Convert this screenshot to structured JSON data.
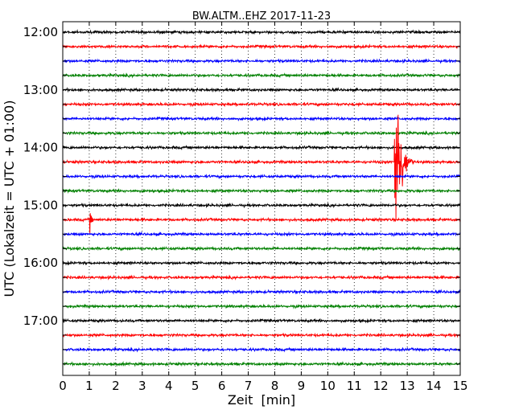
{
  "chart_data": {
    "type": "line",
    "title": "BW.ALTM..EHZ 2017-11-23",
    "xlabel": "Zeit  [min]",
    "ylabel": "UTC (Lokalzeit = UTC + 01:00)",
    "xlim": [
      0,
      15
    ],
    "x_ticks": [
      "0",
      "1",
      "2",
      "3",
      "4",
      "5",
      "6",
      "7",
      "8",
      "9",
      "10",
      "11",
      "12",
      "13",
      "14",
      "15"
    ],
    "y_tick_labels": [
      "12:00",
      "13:00",
      "14:00",
      "15:00",
      "16:00",
      "17:00"
    ],
    "grid": {
      "x": "dotted",
      "y": "none"
    },
    "trace_interval_min": 15,
    "trace_starts": [
      "12:00",
      "12:15",
      "12:30",
      "12:45",
      "13:00",
      "13:15",
      "13:30",
      "13:45",
      "14:00",
      "14:15",
      "14:30",
      "14:45",
      "15:00",
      "15:15",
      "15:30",
      "15:45",
      "16:00",
      "16:15",
      "16:30",
      "16:45",
      "17:00",
      "17:15",
      "17:30",
      "17:45"
    ],
    "colors": [
      "#000000",
      "#ff0000",
      "#0000ff",
      "#008000"
    ],
    "events": [
      {
        "trace": "14:15",
        "start_min": 12.5,
        "end_min": 13.4,
        "amplitude": "large"
      },
      {
        "trace": "15:15",
        "start_min": 1.0,
        "end_min": 1.35,
        "amplitude": "medium"
      }
    ]
  }
}
